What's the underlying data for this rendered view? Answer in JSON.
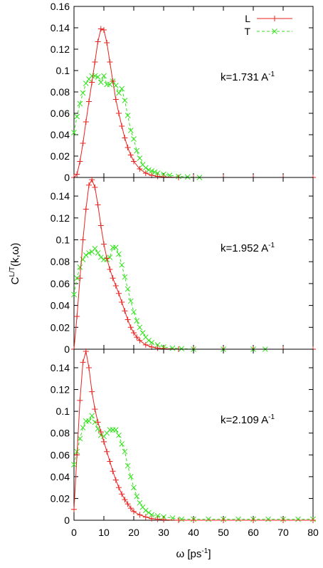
{
  "chart_data": {
    "type": "line",
    "ylabel": {
      "base": "C",
      "sup": "L/T",
      "rest": "(k,ω)"
    },
    "xlabel": {
      "base": "ω [ps",
      "sup": "-1",
      "rest": "]"
    },
    "xlim": [
      0,
      80
    ],
    "x_ticks": [
      0,
      10,
      20,
      30,
      40,
      50,
      60,
      70,
      80
    ],
    "grid": false,
    "legend": {
      "placement": "top-right of first panel",
      "entries": [
        {
          "label": "L",
          "color": "#e8231f",
          "marker": "plus",
          "dash": "solid"
        },
        {
          "label": "T",
          "color": "#35e21f",
          "marker": "x",
          "dash": "dashed"
        }
      ]
    },
    "panels": [
      {
        "annotation": {
          "base": "k=1.731 A",
          "sup": "-1"
        },
        "ylim": [
          0,
          0.16
        ],
        "y_ticks": [
          {
            "v": 0,
            "label": "0"
          },
          {
            "v": 0.02,
            "label": "0.02"
          },
          {
            "v": 0.04,
            "label": "0.04"
          },
          {
            "v": 0.06,
            "label": "0.06"
          },
          {
            "v": 0.08,
            "label": "0.08"
          },
          {
            "v": 0.1,
            "label": "0.1"
          },
          {
            "v": 0.12,
            "label": "0.12"
          },
          {
            "v": 0.14,
            "label": "0.14"
          },
          {
            "v": 0.16,
            "label": "0.16"
          }
        ],
        "L": [
          [
            0,
            0
          ],
          [
            1,
            0.003
          ],
          [
            2,
            0.015
          ],
          [
            3,
            0.032
          ],
          [
            4,
            0.052
          ],
          [
            5,
            0.071
          ],
          [
            6,
            0.089
          ],
          [
            7,
            0.108
          ],
          [
            8,
            0.127
          ],
          [
            9,
            0.139
          ],
          [
            10,
            0.138
          ],
          [
            11,
            0.126
          ],
          [
            12,
            0.108
          ],
          [
            13,
            0.09
          ],
          [
            14,
            0.073
          ],
          [
            15,
            0.06
          ],
          [
            16,
            0.048
          ],
          [
            17,
            0.037
          ],
          [
            18,
            0.028
          ],
          [
            19,
            0.021
          ],
          [
            20,
            0.015
          ],
          [
            22,
            0.008
          ],
          [
            24,
            0.004
          ],
          [
            26,
            0.002
          ],
          [
            28,
            0.001
          ],
          [
            30,
            0.0005
          ],
          [
            35,
            0
          ],
          [
            40,
            0
          ],
          [
            50,
            0
          ],
          [
            60,
            0
          ],
          [
            70,
            0
          ],
          [
            80,
            0
          ]
        ],
        "T": [
          [
            0,
            0.042
          ],
          [
            1,
            0.057
          ],
          [
            2,
            0.069
          ],
          [
            3,
            0.079
          ],
          [
            4,
            0.088
          ],
          [
            5,
            0.092
          ],
          [
            6,
            0.095
          ],
          [
            7,
            0.095
          ],
          [
            8,
            0.094
          ],
          [
            9,
            0.089
          ],
          [
            10,
            0.095
          ],
          [
            11,
            0.087
          ],
          [
            12,
            0.087
          ],
          [
            13,
            0.09
          ],
          [
            14,
            0.086
          ],
          [
            15,
            0.079
          ],
          [
            16,
            0.083
          ],
          [
            17,
            0.072
          ],
          [
            18,
            0.058
          ],
          [
            19,
            0.044
          ],
          [
            20,
            0.036
          ],
          [
            21,
            0.025
          ],
          [
            22,
            0.018
          ],
          [
            23,
            0.012
          ],
          [
            24,
            0.009
          ],
          [
            25,
            0.007
          ],
          [
            26,
            0.006
          ],
          [
            27,
            0.005
          ],
          [
            28,
            0.004
          ],
          [
            30,
            0.003
          ],
          [
            32,
            0.002
          ],
          [
            35,
            0.001
          ],
          [
            38,
            0.0005
          ],
          [
            42,
            0
          ]
        ]
      },
      {
        "annotation": {
          "base": "k=1.952 A",
          "sup": "-1"
        },
        "ylim": [
          0,
          0.157
        ],
        "y_ticks": [
          {
            "v": 0,
            "label": "0"
          },
          {
            "v": 0.02,
            "label": "0.02"
          },
          {
            "v": 0.04,
            "label": "0.04"
          },
          {
            "v": 0.06,
            "label": "0.06"
          },
          {
            "v": 0.08,
            "label": "0.08"
          },
          {
            "v": 0.1,
            "label": "0.1"
          },
          {
            "v": 0.12,
            "label": "0.12"
          },
          {
            "v": 0.14,
            "label": "0.14"
          }
        ],
        "L": [
          [
            0,
            0
          ],
          [
            1,
            0.03
          ],
          [
            2,
            0.065
          ],
          [
            3,
            0.1
          ],
          [
            4,
            0.128
          ],
          [
            5,
            0.15
          ],
          [
            6,
            0.155
          ],
          [
            7,
            0.148
          ],
          [
            8,
            0.132
          ],
          [
            9,
            0.113
          ],
          [
            10,
            0.096
          ],
          [
            11,
            0.083
          ],
          [
            12,
            0.073
          ],
          [
            13,
            0.065
          ],
          [
            14,
            0.058
          ],
          [
            15,
            0.051
          ],
          [
            16,
            0.043
          ],
          [
            17,
            0.035
          ],
          [
            18,
            0.027
          ],
          [
            19,
            0.02
          ],
          [
            20,
            0.015
          ],
          [
            21,
            0.011
          ],
          [
            22,
            0.008
          ],
          [
            24,
            0.004
          ],
          [
            26,
            0.002
          ],
          [
            28,
            0.001
          ],
          [
            30,
            0.0005
          ],
          [
            35,
            0
          ],
          [
            40,
            0
          ],
          [
            50,
            0
          ],
          [
            60,
            0
          ],
          [
            70,
            0
          ],
          [
            80,
            0
          ]
        ],
        "T": [
          [
            0,
            0.05
          ],
          [
            1,
            0.065
          ],
          [
            2,
            0.075
          ],
          [
            3,
            0.082
          ],
          [
            4,
            0.086
          ],
          [
            5,
            0.088
          ],
          [
            6,
            0.089
          ],
          [
            7,
            0.092
          ],
          [
            8,
            0.088
          ],
          [
            9,
            0.084
          ],
          [
            10,
            0.082
          ],
          [
            11,
            0.082
          ],
          [
            12,
            0.084
          ],
          [
            13,
            0.093
          ],
          [
            14,
            0.093
          ],
          [
            15,
            0.087
          ],
          [
            16,
            0.077
          ],
          [
            17,
            0.066
          ],
          [
            18,
            0.055
          ],
          [
            19,
            0.044
          ],
          [
            20,
            0.034
          ],
          [
            21,
            0.026
          ],
          [
            22,
            0.02
          ],
          [
            23,
            0.015
          ],
          [
            24,
            0.011
          ],
          [
            25,
            0.008
          ],
          [
            26,
            0.006
          ],
          [
            28,
            0.004
          ],
          [
            30,
            0.002
          ],
          [
            33,
            0.001
          ],
          [
            36,
            0.0005
          ],
          [
            40,
            0
          ],
          [
            50,
            0
          ],
          [
            60,
            0
          ],
          [
            64,
            0
          ]
        ]
      },
      {
        "annotation": {
          "base": "k=2.109 A",
          "sup": "-1"
        },
        "ylim": [
          0,
          0.157
        ],
        "y_ticks": [
          {
            "v": 0,
            "label": "0"
          },
          {
            "v": 0.02,
            "label": "0.02"
          },
          {
            "v": 0.04,
            "label": "0.04"
          },
          {
            "v": 0.06,
            "label": "0.06"
          },
          {
            "v": 0.08,
            "label": "0.08"
          },
          {
            "v": 0.1,
            "label": "0.1"
          },
          {
            "v": 0.12,
            "label": "0.12"
          },
          {
            "v": 0.14,
            "label": "0.14"
          }
        ],
        "L": [
          [
            0,
            0.01
          ],
          [
            1,
            0.06
          ],
          [
            2,
            0.11
          ],
          [
            3,
            0.145
          ],
          [
            4,
            0.155
          ],
          [
            5,
            0.14
          ],
          [
            6,
            0.118
          ],
          [
            7,
            0.102
          ],
          [
            8,
            0.09
          ],
          [
            9,
            0.081
          ],
          [
            10,
            0.072
          ],
          [
            11,
            0.063
          ],
          [
            12,
            0.054
          ],
          [
            13,
            0.045
          ],
          [
            14,
            0.037
          ],
          [
            15,
            0.03
          ],
          [
            16,
            0.024
          ],
          [
            17,
            0.019
          ],
          [
            18,
            0.015
          ],
          [
            19,
            0.011
          ],
          [
            20,
            0.008
          ],
          [
            22,
            0.005
          ],
          [
            24,
            0.003
          ],
          [
            26,
            0.0015
          ],
          [
            28,
            0.001
          ],
          [
            30,
            0.0005
          ],
          [
            35,
            0
          ],
          [
            40,
            0
          ],
          [
            50,
            0
          ],
          [
            60,
            0
          ],
          [
            70,
            0
          ],
          [
            80,
            0
          ]
        ],
        "T": [
          [
            0,
            0.051
          ],
          [
            1,
            0.063
          ],
          [
            2,
            0.075
          ],
          [
            3,
            0.085
          ],
          [
            4,
            0.091
          ],
          [
            5,
            0.091
          ],
          [
            6,
            0.096
          ],
          [
            7,
            0.09
          ],
          [
            8,
            0.084
          ],
          [
            9,
            0.078
          ],
          [
            10,
            0.077
          ],
          [
            11,
            0.08
          ],
          [
            12,
            0.083
          ],
          [
            13,
            0.083
          ],
          [
            14,
            0.083
          ],
          [
            15,
            0.078
          ],
          [
            16,
            0.07
          ],
          [
            17,
            0.063
          ],
          [
            18,
            0.05
          ],
          [
            19,
            0.04
          ],
          [
            20,
            0.03
          ],
          [
            21,
            0.022
          ],
          [
            22,
            0.016
          ],
          [
            23,
            0.012
          ],
          [
            24,
            0.009
          ],
          [
            25,
            0.007
          ],
          [
            26,
            0.005
          ],
          [
            28,
            0.004
          ],
          [
            30,
            0.003
          ],
          [
            33,
            0.002
          ],
          [
            36,
            0.001
          ],
          [
            40,
            0.001
          ],
          [
            45,
            0.001
          ],
          [
            50,
            0.001
          ],
          [
            55,
            0.001
          ],
          [
            60,
            0.001
          ],
          [
            65,
            0.001
          ],
          [
            70,
            0.001
          ],
          [
            75,
            0.001
          ],
          [
            80,
            0.001
          ]
        ]
      }
    ]
  }
}
